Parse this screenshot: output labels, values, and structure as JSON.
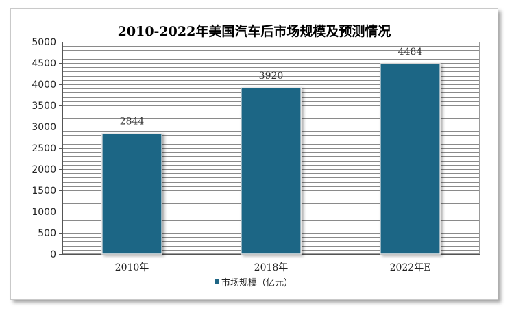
{
  "chart_data": {
    "type": "bar",
    "title": "2010-2022年美国汽车后市场规模及预测情况",
    "categories": [
      "2010年",
      "2018年",
      "2022年E"
    ],
    "series": [
      {
        "name": "市场规模（亿元）",
        "values": [
          2844,
          3920,
          4484
        ]
      }
    ],
    "data_labels": [
      "2844",
      "3920",
      "4484"
    ],
    "y_ticks": [
      "0",
      "500",
      "1000",
      "1500",
      "2000",
      "2500",
      "3000",
      "3500",
      "4000",
      "4500",
      "5000"
    ],
    "ylim": [
      0,
      5000
    ],
    "ystep": 500,
    "xlabel": "",
    "ylabel": "",
    "grid": true,
    "legend_position": "bottom",
    "colors": {
      "bar": "#1f6685",
      "grid": "#8a8a8a",
      "plot_background": "#ffffff"
    }
  }
}
